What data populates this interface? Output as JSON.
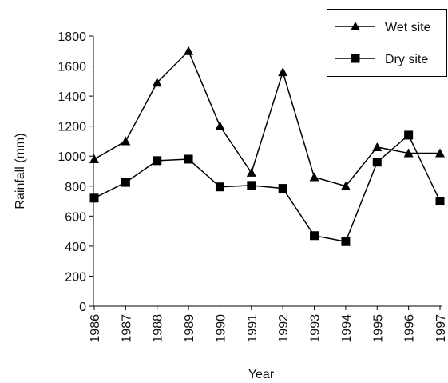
{
  "chart_data": {
    "type": "line",
    "x_label": "Year",
    "y_label": "Rainfall (mm)",
    "categories": [
      "1986",
      "1987",
      "1988",
      "1989",
      "1990",
      "1991",
      "1992",
      "1993",
      "1994",
      "1995",
      "1996",
      "1997"
    ],
    "series": [
      {
        "name": "Wet site",
        "color": "#000000",
        "marker": "triangle",
        "values": [
          980,
          1100,
          1490,
          1700,
          1200,
          890,
          1560,
          860,
          800,
          1060,
          1020,
          1020
        ]
      },
      {
        "name": "Dry site",
        "color": "#000000",
        "marker": "square",
        "values": [
          720,
          825,
          970,
          980,
          795,
          805,
          785,
          470,
          430,
          960,
          1140,
          700
        ]
      }
    ],
    "ylim": [
      0,
      1800
    ],
    "yticks": [
      0,
      200,
      400,
      600,
      800,
      1000,
      1200,
      1400,
      1600,
      1800
    ],
    "grid": false,
    "legend": "upper right"
  }
}
